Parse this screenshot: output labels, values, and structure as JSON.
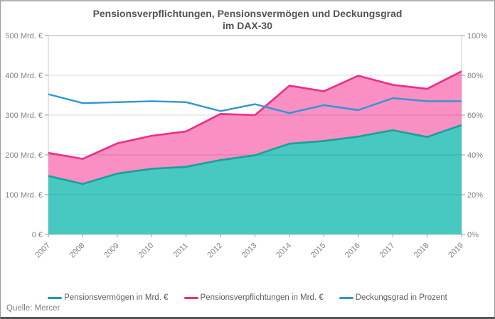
{
  "source_note": "Quelle: Mercer",
  "chart_data": {
    "type": "area",
    "title_line1": "Pensionsverpflichtungen, Pensionsvermögen und Deckungsgrad",
    "title_line2": "im DAX-30",
    "x": [
      2007,
      2008,
      2009,
      2010,
      2011,
      2012,
      2013,
      2014,
      2015,
      2016,
      2017,
      2018,
      2019
    ],
    "series": [
      {
        "name": "Pensionsvermögen in Mrd. €",
        "type": "area",
        "axis": "left",
        "values": [
          147,
          127,
          153,
          165,
          170,
          187,
          199,
          228,
          235,
          246,
          262,
          245,
          275
        ],
        "fill": "#47C8C1",
        "stroke": "#16A29B"
      },
      {
        "name": "Pensionsverpflichtungen in Mrd. €",
        "type": "area",
        "axis": "left",
        "values": [
          205,
          190,
          229,
          248,
          259,
          303,
          300,
          374,
          360,
          399,
          376,
          366,
          410
        ],
        "fill": "#F98FC3",
        "stroke": "#EB2E87"
      },
      {
        "name": "Deckungsgrad in Prozent",
        "type": "line",
        "axis": "right",
        "values": [
          70.5,
          66,
          66.5,
          67,
          66.5,
          62,
          65.5,
          61,
          65,
          62.5,
          68.5,
          67,
          67
        ],
        "stroke": "#2D96D5"
      }
    ],
    "left_axis": {
      "min": 0,
      "max": 500,
      "ticks": [
        "0 €",
        "100 Mrd. €",
        "200 Mrd. €",
        "300 Mrd. €",
        "400 Mrd. €",
        "500 Mrd. €"
      ]
    },
    "right_axis": {
      "min": 0,
      "max": 100,
      "ticks": [
        "0%",
        "20%",
        "40%",
        "60%",
        "80%",
        "100%"
      ]
    },
    "grid": true,
    "legend_position": "bottom",
    "colors": {
      "grid": "rgba(0,0,0,0.14)",
      "plot_border": "#c9c9c9",
      "tick": "#999999",
      "axis_text": "#828282",
      "title_text": "#545454"
    }
  }
}
